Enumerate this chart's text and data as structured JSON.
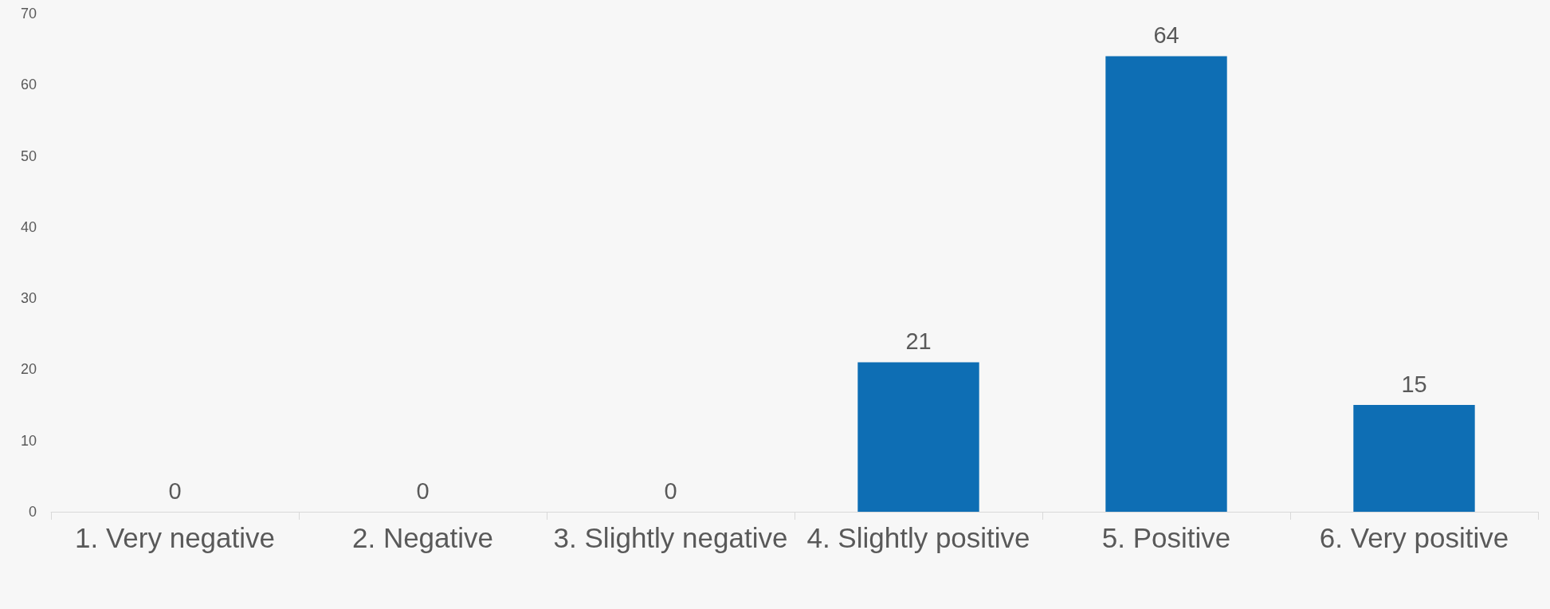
{
  "chart_data": {
    "type": "bar",
    "categories": [
      "1. Very negative",
      "2. Negative",
      "3. Slightly negative",
      "4. Slightly positive",
      "5. Positive",
      "6. Very positive"
    ],
    "values": [
      0,
      0,
      0,
      21,
      64,
      15
    ],
    "color": "#0e6eb4",
    "ylim": [
      0,
      70
    ],
    "yticks": [
      0,
      10,
      20,
      30,
      40,
      50,
      60,
      70
    ],
    "grid": false,
    "data_labels": true
  }
}
